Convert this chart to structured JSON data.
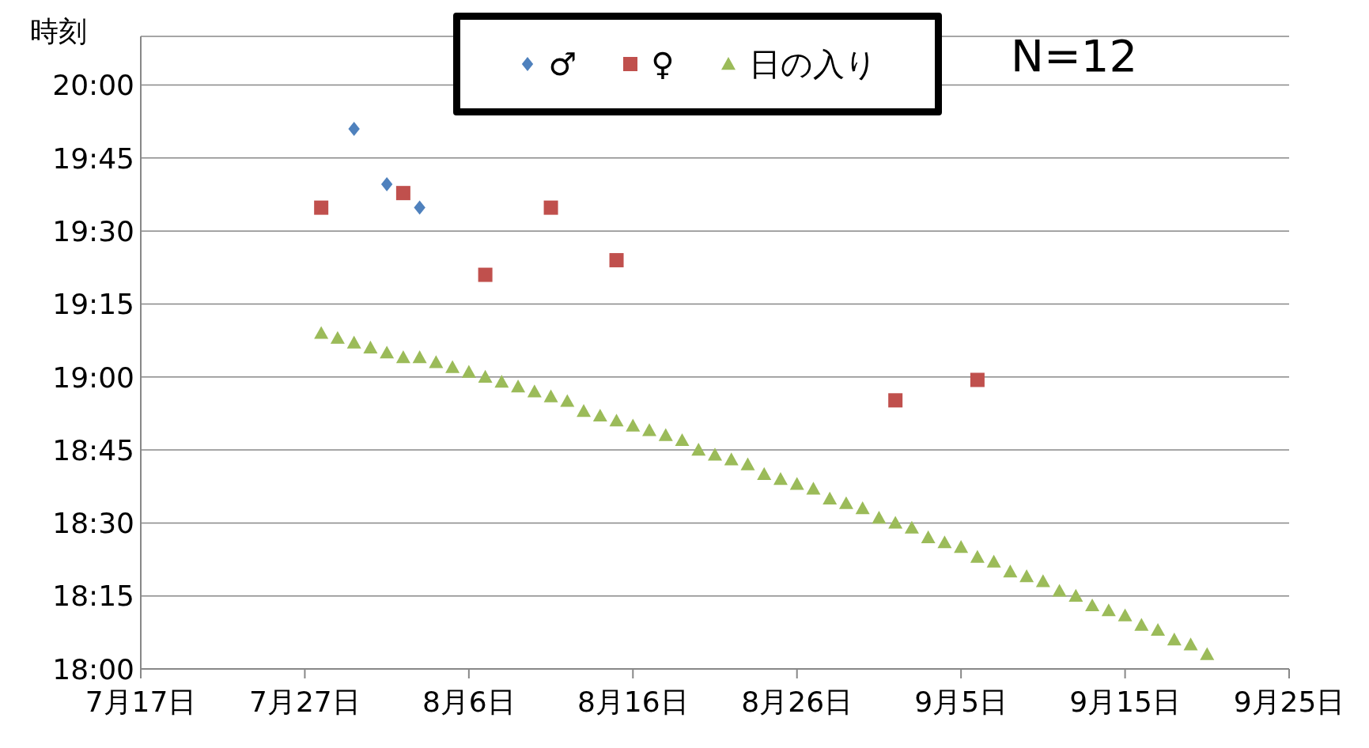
{
  "chart_data": {
    "type": "scatter",
    "ylabel": "時刻",
    "annotations": [
      "N=12"
    ],
    "xlim": [
      "--07-17",
      "--09-25"
    ],
    "xticks": [
      {
        "value": "--07-17",
        "label": "7月17日"
      },
      {
        "value": "--07-27",
        "label": "7月27日"
      },
      {
        "value": "--08-06",
        "label": "8月6日"
      },
      {
        "value": "--08-16",
        "label": "8月16日"
      },
      {
        "value": "--08-26",
        "label": "8月26日"
      },
      {
        "value": "--09-05",
        "label": "9月5日"
      },
      {
        "value": "--09-15",
        "label": "9月15日"
      },
      {
        "value": "--09-25",
        "label": "9月25日"
      }
    ],
    "ylim": [
      18,
      20.1667
    ],
    "yticks": [
      {
        "value": 18,
        "label": "18:00"
      },
      {
        "value": 18.25,
        "label": "18:15"
      },
      {
        "value": 18.5,
        "label": "18:30"
      },
      {
        "value": 18.75,
        "label": "18:45"
      },
      {
        "value": 19,
        "label": "19:00"
      },
      {
        "value": 19.25,
        "label": "19:15"
      },
      {
        "value": 19.5,
        "label": "19:30"
      },
      {
        "value": 19.75,
        "label": "19:45"
      },
      {
        "value": 20,
        "label": "20:00"
      }
    ],
    "grid": "y",
    "legend": "top",
    "series": [
      {
        "name": "♂",
        "color": "#4f81bd",
        "marker": "diamond",
        "x": [
          "--07-30",
          "--08-01",
          "--08-03"
        ],
        "values": [
          19.85,
          19.66,
          19.58
        ]
      },
      {
        "name": "♀",
        "color": "#c0504d",
        "marker": "square",
        "x": [
          "--07-28",
          "--08-02",
          "--08-07",
          "--08-11",
          "--08-15",
          "--09-01",
          "--09-06"
        ],
        "values": [
          19.58,
          19.63,
          19.35,
          19.58,
          19.4,
          18.92,
          18.99
        ]
      },
      {
        "name": "日の入り",
        "color": "#9bbb59",
        "marker": "triangle",
        "x": [
          "--07-28",
          "--07-29",
          "--07-30",
          "--07-31",
          "--08-01",
          "--08-02",
          "--08-03",
          "--08-04",
          "--08-05",
          "--08-06",
          "--08-07",
          "--08-08",
          "--08-09",
          "--08-10",
          "--08-11",
          "--08-12",
          "--08-13",
          "--08-14",
          "--08-15",
          "--08-16",
          "--08-17",
          "--08-18",
          "--08-19",
          "--08-20",
          "--08-21",
          "--08-22",
          "--08-23",
          "--08-24",
          "--08-25",
          "--08-26",
          "--08-27",
          "--08-28",
          "--08-29",
          "--08-30",
          "--08-31",
          "--09-01",
          "--09-02",
          "--09-03",
          "--09-04",
          "--09-05",
          "--09-06",
          "--09-07",
          "--09-08",
          "--09-09",
          "--09-10",
          "--09-11",
          "--09-12",
          "--09-13",
          "--09-14",
          "--09-15",
          "--09-16",
          "--09-17",
          "--09-18",
          "--09-19",
          "--09-20"
        ],
        "values": [
          19.15,
          19.133,
          19.117,
          19.1,
          19.083,
          19.067,
          19.067,
          19.05,
          19.033,
          19.017,
          19.0,
          18.983,
          18.967,
          18.95,
          18.933,
          18.917,
          18.883,
          18.867,
          18.85,
          18.833,
          18.817,
          18.8,
          18.783,
          18.75,
          18.733,
          18.717,
          18.7,
          18.667,
          18.65,
          18.633,
          18.617,
          18.583,
          18.567,
          18.55,
          18.517,
          18.5,
          18.483,
          18.45,
          18.433,
          18.417,
          18.383,
          18.367,
          18.333,
          18.317,
          18.3,
          18.267,
          18.25,
          18.217,
          18.2,
          18.183,
          18.15,
          18.133,
          18.1,
          18.083,
          18.05
        ]
      }
    ]
  }
}
